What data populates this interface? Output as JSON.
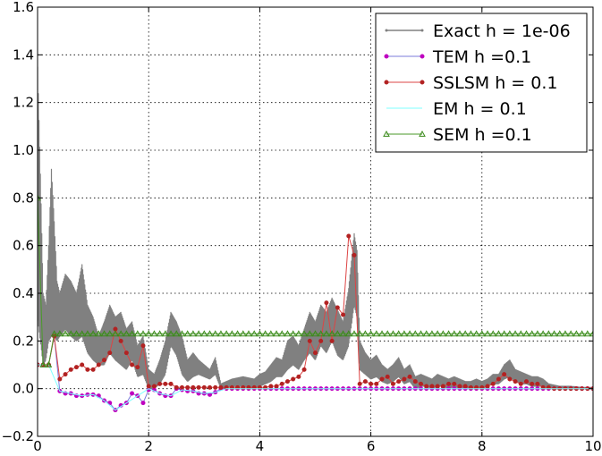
{
  "chart_data": {
    "type": "line",
    "title": "",
    "xlabel": "",
    "ylabel": "",
    "xlim": [
      0,
      10
    ],
    "ylim": [
      -0.2,
      1.6
    ],
    "xticks": [
      0,
      2,
      4,
      6,
      8,
      10
    ],
    "yticks": [
      -0.2,
      0.0,
      0.2,
      0.4,
      0.6,
      0.8,
      1.0,
      1.2,
      1.4,
      1.6
    ],
    "xtick_labels": [
      "0",
      "2",
      "4",
      "6",
      "8",
      "10"
    ],
    "ytick_labels": [
      "−0.2",
      "0.0",
      "0.2",
      "0.4",
      "0.6",
      "0.8",
      "1.0",
      "1.2",
      "1.4",
      "1.6"
    ],
    "grid": true,
    "legend_position": "top-right",
    "series": [
      {
        "name": "Exact h = 1e-06",
        "color": "#808080",
        "marker": "dot",
        "band": true,
        "x": [
          0.0,
          0.05,
          0.1,
          0.15,
          0.2,
          0.25,
          0.3,
          0.35,
          0.4,
          0.5,
          0.6,
          0.7,
          0.8,
          0.9,
          1.0,
          1.1,
          1.2,
          1.3,
          1.4,
          1.5,
          1.6,
          1.7,
          1.8,
          1.9,
          2.0,
          2.1,
          2.2,
          2.3,
          2.4,
          2.5,
          2.6,
          2.7,
          2.8,
          2.9,
          3.0,
          3.1,
          3.2,
          3.3,
          3.5,
          3.7,
          3.9,
          4.0,
          4.1,
          4.2,
          4.3,
          4.4,
          4.5,
          4.6,
          4.7,
          4.8,
          4.9,
          5.0,
          5.1,
          5.2,
          5.3,
          5.4,
          5.5,
          5.6,
          5.7,
          5.75,
          5.8,
          5.9,
          6.0,
          6.1,
          6.2,
          6.3,
          6.4,
          6.5,
          6.6,
          6.7,
          6.8,
          6.9,
          7.0,
          7.1,
          7.2,
          7.3,
          7.4,
          7.5,
          7.6,
          7.7,
          7.8,
          7.9,
          8.0,
          8.1,
          8.2,
          8.3,
          8.4,
          8.5,
          8.6,
          8.7,
          8.8,
          8.9,
          9.0,
          9.1,
          9.2,
          9.4,
          9.6,
          9.8,
          10.0
        ],
        "upper": [
          1.35,
          0.9,
          0.4,
          0.35,
          0.6,
          0.92,
          0.7,
          0.45,
          0.4,
          0.48,
          0.45,
          0.4,
          0.52,
          0.35,
          0.3,
          0.22,
          0.28,
          0.35,
          0.3,
          0.32,
          0.25,
          0.28,
          0.18,
          0.22,
          0.08,
          0.06,
          0.12,
          0.2,
          0.32,
          0.28,
          0.22,
          0.12,
          0.15,
          0.12,
          0.1,
          0.08,
          0.13,
          0.02,
          0.04,
          0.05,
          0.04,
          0.06,
          0.07,
          0.1,
          0.13,
          0.12,
          0.2,
          0.22,
          0.18,
          0.25,
          0.32,
          0.28,
          0.35,
          0.32,
          0.38,
          0.33,
          0.28,
          0.42,
          0.65,
          0.58,
          0.2,
          0.15,
          0.12,
          0.14,
          0.1,
          0.08,
          0.1,
          0.13,
          0.08,
          0.1,
          0.05,
          0.06,
          0.05,
          0.04,
          0.06,
          0.05,
          0.04,
          0.05,
          0.04,
          0.03,
          0.03,
          0.04,
          0.03,
          0.04,
          0.06,
          0.06,
          0.1,
          0.12,
          0.08,
          0.07,
          0.06,
          0.05,
          0.05,
          0.04,
          0.02,
          0.01,
          0.01,
          0.005,
          0.005
        ],
        "lower": [
          0.3,
          0.2,
          0.1,
          0.12,
          0.2,
          0.22,
          0.22,
          0.2,
          0.22,
          0.25,
          0.22,
          0.2,
          0.22,
          0.15,
          0.12,
          0.1,
          0.1,
          0.15,
          0.12,
          0.1,
          0.08,
          0.12,
          0.05,
          0.06,
          0.0,
          0.0,
          0.02,
          0.06,
          0.18,
          0.14,
          0.06,
          0.03,
          0.05,
          0.06,
          0.05,
          0.04,
          0.06,
          0.0,
          0.01,
          0.01,
          0.0,
          0.01,
          0.02,
          0.03,
          0.05,
          0.05,
          0.08,
          0.1,
          0.08,
          0.12,
          0.15,
          0.12,
          0.18,
          0.15,
          0.2,
          0.14,
          0.12,
          0.18,
          0.35,
          0.3,
          0.08,
          0.06,
          0.04,
          0.05,
          0.03,
          0.02,
          0.03,
          0.05,
          0.02,
          0.03,
          0.0,
          0.01,
          0.01,
          0.0,
          0.01,
          0.01,
          0.0,
          0.01,
          0.0,
          0.0,
          0.0,
          0.01,
          0.0,
          0.01,
          0.02,
          0.02,
          0.04,
          0.05,
          0.03,
          0.02,
          0.02,
          0.01,
          0.01,
          0.01,
          0.0,
          0.0,
          0.0,
          0.0,
          0.0
        ]
      },
      {
        "name": "TEM h =0.1",
        "color": "#bf00bf",
        "line_color": "#7b7bdb",
        "marker": "circle",
        "x": [
          0.0,
          0.1,
          0.2,
          0.3,
          0.4,
          0.5,
          0.6,
          0.7,
          0.8,
          0.9,
          1.0,
          1.1,
          1.2,
          1.3,
          1.4,
          1.5,
          1.6,
          1.7,
          1.8,
          1.9,
          2.0,
          2.1,
          2.2,
          2.3,
          2.4,
          2.5,
          2.6,
          2.7,
          2.8,
          2.9,
          3.0,
          3.1,
          3.2,
          3.3,
          3.4,
          3.5,
          3.6,
          3.7,
          3.8,
          3.9,
          4.0,
          4.1,
          4.2,
          4.3,
          4.4,
          4.5,
          4.6,
          4.7,
          4.8,
          4.9,
          5.0,
          5.1,
          5.2,
          5.3,
          5.4,
          5.5,
          5.6,
          5.7,
          5.8,
          5.9,
          6.0,
          6.1,
          6.2,
          6.3,
          6.4,
          6.5,
          6.6,
          6.7,
          6.8,
          6.9,
          7.0,
          7.1,
          7.2,
          7.3,
          7.4,
          7.5,
          7.6,
          7.7,
          7.8,
          7.9,
          8.0,
          8.1,
          8.2,
          8.3,
          8.4,
          8.5,
          8.6,
          8.7,
          8.8,
          8.9,
          9.0,
          9.1,
          9.2,
          9.3,
          9.4,
          9.5,
          9.6,
          9.7,
          9.8,
          9.9,
          10.0
        ],
        "values": [
          0.1,
          0.1,
          0.1,
          0.22,
          -0.01,
          -0.02,
          -0.02,
          -0.03,
          -0.03,
          -0.025,
          -0.025,
          -0.03,
          -0.05,
          -0.06,
          -0.09,
          -0.07,
          -0.06,
          -0.02,
          -0.03,
          -0.06,
          -0.005,
          -0.005,
          -0.02,
          -0.03,
          -0.03,
          0.0,
          -0.005,
          -0.01,
          -0.01,
          -0.02,
          -0.02,
          -0.025,
          -0.015,
          0.0,
          0.0,
          0.0,
          0.0,
          0.0,
          0.0,
          0.0,
          0.0,
          0.0,
          0.0,
          0.0,
          0.0,
          0.0,
          0.0,
          0.0,
          0.0,
          0.0,
          0.0,
          0.0,
          0.0,
          0.0,
          0.0,
          0.0,
          0.0,
          0.0,
          0.0,
          0.0,
          0.0,
          0.0,
          0.0,
          0.0,
          0.0,
          0.0,
          0.0,
          0.0,
          0.0,
          0.0,
          0.0,
          0.0,
          0.0,
          0.0,
          0.0,
          0.0,
          0.0,
          0.0,
          0.0,
          0.0,
          0.0,
          0.0,
          0.0,
          0.0,
          0.0,
          0.0,
          0.0,
          0.0,
          0.0,
          0.0,
          0.0,
          0.0,
          0.0,
          0.0,
          0.0,
          0.0,
          0.0,
          0.0,
          0.0,
          0.0,
          0.0
        ]
      },
      {
        "name": "SSLSM  h = 0.1",
        "color": "#b22222",
        "line_color": "#dd4444",
        "marker": "circle",
        "x": [
          0.0,
          0.1,
          0.2,
          0.3,
          0.4,
          0.5,
          0.6,
          0.7,
          0.8,
          0.9,
          1.0,
          1.1,
          1.2,
          1.3,
          1.4,
          1.5,
          1.6,
          1.7,
          1.8,
          1.9,
          2.0,
          2.1,
          2.2,
          2.3,
          2.4,
          2.5,
          2.6,
          2.7,
          2.8,
          2.9,
          3.0,
          3.1,
          3.2,
          3.3,
          3.4,
          3.5,
          3.6,
          3.7,
          3.8,
          3.9,
          4.0,
          4.1,
          4.2,
          4.3,
          4.4,
          4.5,
          4.6,
          4.7,
          4.8,
          4.9,
          5.0,
          5.1,
          5.2,
          5.3,
          5.4,
          5.5,
          5.6,
          5.7,
          5.8,
          5.9,
          6.0,
          6.1,
          6.2,
          6.3,
          6.4,
          6.5,
          6.6,
          6.7,
          6.8,
          6.9,
          7.0,
          7.1,
          7.2,
          7.3,
          7.4,
          7.5,
          7.6,
          7.7,
          7.8,
          7.9,
          8.0,
          8.1,
          8.2,
          8.3,
          8.4,
          8.5,
          8.6,
          8.7,
          8.8,
          8.9,
          9.0,
          9.1,
          9.2,
          9.3,
          9.4,
          9.5,
          9.6,
          9.7,
          9.8,
          9.9,
          10.0
        ],
        "values": [
          0.1,
          0.1,
          0.1,
          0.22,
          0.04,
          0.06,
          0.08,
          0.09,
          0.1,
          0.08,
          0.08,
          0.1,
          0.12,
          0.15,
          0.25,
          0.2,
          0.15,
          0.1,
          0.09,
          0.18,
          0.01,
          0.01,
          0.02,
          0.02,
          0.02,
          0.005,
          0.005,
          0.005,
          0.005,
          0.005,
          0.005,
          0.005,
          0.005,
          0.005,
          0.005,
          0.005,
          0.005,
          0.005,
          0.005,
          0.005,
          0.005,
          0.005,
          0.01,
          0.01,
          0.02,
          0.03,
          0.04,
          0.05,
          0.08,
          0.2,
          0.15,
          0.2,
          0.36,
          0.2,
          0.34,
          0.31,
          0.64,
          0.56,
          0.02,
          0.03,
          0.02,
          0.02,
          0.04,
          0.05,
          0.02,
          0.03,
          0.04,
          0.05,
          0.03,
          0.02,
          0.01,
          0.01,
          0.01,
          0.01,
          0.02,
          0.02,
          0.01,
          0.01,
          0.005,
          0.005,
          0.005,
          0.01,
          0.02,
          0.04,
          0.06,
          0.04,
          0.03,
          0.02,
          0.03,
          0.02,
          0.02,
          0.005,
          0.005,
          0.0,
          0.0,
          0.0,
          0.0,
          0.0,
          0.0,
          0.0,
          0.0
        ]
      },
      {
        "name": "EM h = 0.1",
        "color": "#7fffff",
        "line_color": "#7fffff",
        "marker": "none",
        "x": [
          0.0,
          0.2,
          0.4,
          0.6,
          0.8,
          1.0,
          1.2,
          1.4,
          1.6,
          1.8,
          2.0,
          2.2,
          2.4,
          2.6,
          2.8,
          3.0,
          3.2,
          3.4,
          3.6,
          3.8,
          4.0,
          4.2,
          4.4,
          4.6,
          4.8,
          5.0,
          5.2,
          5.4,
          5.6,
          5.8,
          6.0,
          6.5,
          7.0,
          7.5,
          8.0,
          8.5,
          9.0,
          9.5,
          10.0
        ],
        "values": [
          0.1,
          0.1,
          -0.01,
          -0.02,
          -0.03,
          -0.025,
          -0.05,
          -0.09,
          -0.06,
          -0.03,
          0.0,
          -0.02,
          -0.03,
          -0.005,
          -0.01,
          -0.02,
          -0.015,
          0.0,
          0.0,
          0.0,
          0.0,
          0.0,
          0.0,
          0.0,
          0.0,
          0.0,
          0.0,
          0.0,
          0.0,
          0.0,
          0.0,
          0.0,
          0.0,
          0.0,
          0.0,
          0.0,
          0.0,
          0.0,
          0.0
        ]
      },
      {
        "name": "SEM h =0.1",
        "color": "#3a8a1a",
        "line_color": "#4a9a2a",
        "marker": "triangle",
        "x": [
          0.0,
          0.1,
          0.2,
          0.3,
          0.4,
          0.5,
          0.6,
          0.7,
          0.8,
          0.9,
          1.0,
          1.1,
          1.2,
          1.3,
          1.4,
          1.5,
          1.6,
          1.7,
          1.8,
          1.9,
          2.0,
          2.1,
          2.2,
          2.3,
          2.4,
          2.5,
          2.6,
          2.7,
          2.8,
          2.9,
          3.0,
          3.1,
          3.2,
          3.3,
          3.4,
          3.5,
          3.6,
          3.7,
          3.8,
          3.9,
          4.0,
          4.1,
          4.2,
          4.3,
          4.4,
          4.5,
          4.6,
          4.7,
          4.8,
          4.9,
          5.0,
          5.1,
          5.2,
          5.3,
          5.4,
          5.5,
          5.6,
          5.7,
          5.8,
          5.9,
          6.0,
          6.1,
          6.2,
          6.3,
          6.4,
          6.5,
          6.6,
          6.7,
          6.8,
          6.9,
          7.0,
          7.1,
          7.2,
          7.3,
          7.4,
          7.5,
          7.6,
          7.7,
          7.8,
          7.9,
          8.0,
          8.1,
          8.2,
          8.3,
          8.4,
          8.5,
          8.6,
          8.7,
          8.8,
          8.9,
          9.0,
          9.1,
          9.2,
          9.3,
          9.4,
          9.5,
          9.6,
          9.7,
          9.8,
          9.9,
          10.0
        ],
        "values": [
          0.8,
          0.1,
          0.1,
          0.23,
          0.23,
          0.23,
          0.23,
          0.23,
          0.23,
          0.23,
          0.23,
          0.23,
          0.23,
          0.23,
          0.23,
          0.23,
          0.23,
          0.23,
          0.23,
          0.23,
          0.23,
          0.23,
          0.23,
          0.23,
          0.23,
          0.23,
          0.23,
          0.23,
          0.23,
          0.23,
          0.23,
          0.23,
          0.23,
          0.23,
          0.23,
          0.23,
          0.23,
          0.23,
          0.23,
          0.23,
          0.23,
          0.23,
          0.23,
          0.23,
          0.23,
          0.23,
          0.23,
          0.23,
          0.23,
          0.23,
          0.23,
          0.23,
          0.23,
          0.23,
          0.23,
          0.23,
          0.23,
          0.23,
          0.23,
          0.23,
          0.23,
          0.23,
          0.23,
          0.23,
          0.23,
          0.23,
          0.23,
          0.23,
          0.23,
          0.23,
          0.23,
          0.23,
          0.23,
          0.23,
          0.23,
          0.23,
          0.23,
          0.23,
          0.23,
          0.23,
          0.23,
          0.23,
          0.23,
          0.23,
          0.23,
          0.23,
          0.23,
          0.23,
          0.23,
          0.23,
          0.23,
          0.23,
          0.23,
          0.23,
          0.23,
          0.23,
          0.23,
          0.23,
          0.23,
          0.23,
          0.23
        ]
      }
    ]
  }
}
